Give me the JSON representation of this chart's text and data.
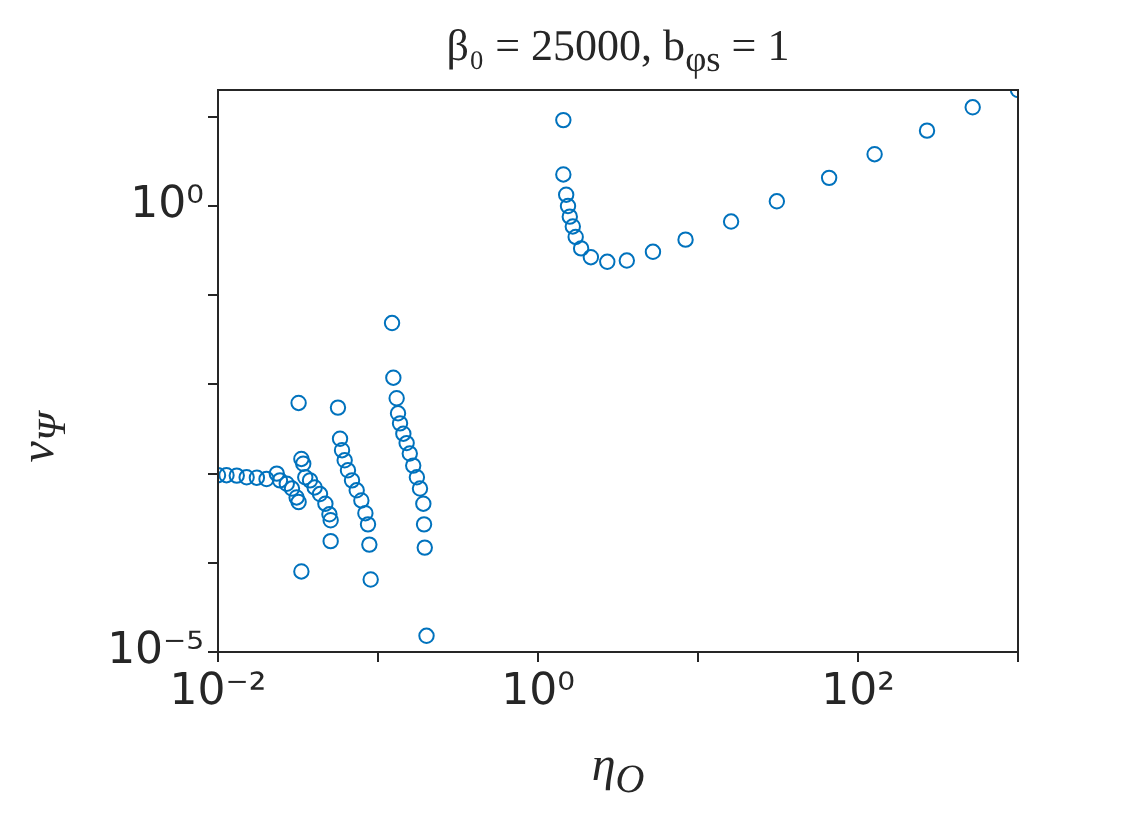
{
  "chart_data": {
    "type": "scatter",
    "title": "β₀ = 25000, b$_{φs}$ = 1",
    "xlabel": "η$_{O}$",
    "ylabel": "v$_{Ψ}$",
    "log": "xy",
    "grid": false,
    "legend": false,
    "marker": "circle",
    "xlim": [
      0.01,
      1000
    ],
    "ylim": [
      1e-05,
      20
    ],
    "xticks": [
      {
        "value": 0.01,
        "label": "10⁻²"
      },
      {
        "value": 0.1,
        "label": null
      },
      {
        "value": 1,
        "label": "10⁰"
      },
      {
        "value": 10,
        "label": null
      },
      {
        "value": 100,
        "label": "10²"
      },
      {
        "value": 1000,
        "label": null
      }
    ],
    "yticks": [
      {
        "value": 1e-05,
        "label": "10⁻⁵"
      },
      {
        "value": 0.0001,
        "label": null
      },
      {
        "value": 0.001,
        "label": null
      },
      {
        "value": 0.01,
        "label": null
      },
      {
        "value": 0.1,
        "label": null
      },
      {
        "value": 1,
        "label": "10⁰"
      },
      {
        "value": 10,
        "label": null
      }
    ],
    "series": [
      {
        "color": "#0072bd",
        "x": [
          0.01,
          0.0113,
          0.0131,
          0.0151,
          0.0175,
          0.0201,
          0.0233,
          0.0244,
          0.0269,
          0.029,
          0.031,
          0.0319,
          0.0319,
          0.0332,
          0.0341,
          0.0351,
          0.0376,
          0.0402,
          0.0434,
          0.0469,
          0.0497,
          0.0506,
          0.0506,
          0.0332,
          0.0562,
          0.0579,
          0.0596,
          0.0619,
          0.0649,
          0.0688,
          0.0736,
          0.0787,
          0.0834,
          0.0866,
          0.0883,
          0.09,
          0.1224,
          0.1247,
          0.1308,
          0.1334,
          0.1373,
          0.144,
          0.151,
          0.158,
          0.166,
          0.175,
          0.183,
          0.192,
          0.194,
          0.196,
          0.201,
          1.44,
          1.44,
          1.5,
          1.54,
          1.58,
          1.65,
          1.72,
          1.86,
          2.14,
          2.71,
          3.59,
          5.23,
          8.36,
          16.1,
          31.1,
          66,
          127,
          270,
          521,
          1000
        ],
        "values": [
          0.00096,
          0.00096,
          0.00095,
          0.00091,
          0.0009,
          0.00087,
          0.001,
          0.00084,
          0.00077,
          0.00068,
          0.00054,
          0.00048,
          0.0062,
          0.00146,
          0.00129,
          0.00091,
          0.00084,
          0.0007,
          0.00059,
          0.00046,
          0.00035,
          0.0003,
          0.000175,
          8e-05,
          0.0055,
          0.00246,
          0.00183,
          0.00141,
          0.00109,
          0.00084,
          0.00065,
          0.0005,
          0.00036,
          0.00027,
          0.00016,
          6.5e-05,
          0.0488,
          0.0119,
          0.007,
          0.00475,
          0.00366,
          0.0028,
          0.0022,
          0.00168,
          0.00123,
          0.00091,
          0.00068,
          0.00046,
          0.00027,
          0.000148,
          1.52e-05,
          9.2,
          2.26,
          1.34,
          1,
          0.76,
          0.59,
          0.45,
          0.335,
          0.267,
          0.237,
          0.245,
          0.307,
          0.42,
          0.67,
          1.13,
          2.07,
          3.81,
          7,
          12.8,
          20
        ]
      }
    ]
  }
}
